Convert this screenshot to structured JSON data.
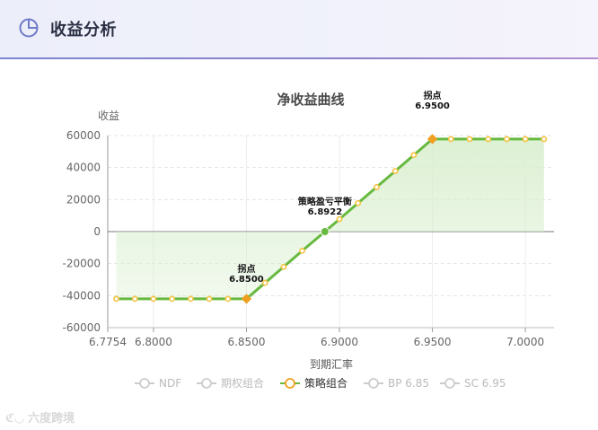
{
  "header": {
    "title": "收益分析",
    "icon": "pie-chart-icon"
  },
  "watermark": {
    "text": "六度跨境",
    "icon": "watermark-logo-icon"
  },
  "chart_data": {
    "type": "line",
    "title": "净收益曲线",
    "ylabel": "收益",
    "xlabel": "到期汇率",
    "xlim": [
      6.7754,
      7.0154
    ],
    "ylim": [
      -60000,
      60000
    ],
    "grid": true,
    "fill": true,
    "x_ticks": [
      {
        "value": 6.7754,
        "label": "6.7754"
      },
      {
        "value": 6.8,
        "label": "6.8000"
      },
      {
        "value": 6.85,
        "label": "6.8500"
      },
      {
        "value": 6.9,
        "label": "6.9000"
      },
      {
        "value": 6.95,
        "label": "6.9500"
      },
      {
        "value": 7.0,
        "label": "7.0000"
      }
    ],
    "y_ticks": [
      {
        "value": 60000,
        "label": "60000"
      },
      {
        "value": 40000,
        "label": "40000"
      },
      {
        "value": 20000,
        "label": "20000"
      },
      {
        "value": 0,
        "label": "0"
      },
      {
        "value": -20000,
        "label": "-20000"
      },
      {
        "value": -40000,
        "label": "-40000"
      },
      {
        "value": -60000,
        "label": "-60000"
      }
    ],
    "legend_position": "bottom",
    "legend": [
      {
        "name": "NDF",
        "active": false
      },
      {
        "name": "期权组合",
        "active": false
      },
      {
        "name": "策略组合",
        "active": true
      },
      {
        "name": "BP 6.85",
        "active": false
      },
      {
        "name": "SC 6.95",
        "active": false
      }
    ],
    "series": [
      {
        "name": "策略组合",
        "color": "#67b93f",
        "fill_color": "#d9efcf",
        "marker_color": "#f5c243",
        "points": [
          [
            6.78,
            -42000
          ],
          [
            6.79,
            -42000
          ],
          [
            6.8,
            -42000
          ],
          [
            6.81,
            -42000
          ],
          [
            6.82,
            -42000
          ],
          [
            6.83,
            -42000
          ],
          [
            6.84,
            -42000
          ],
          [
            6.85,
            -42000
          ],
          [
            6.86,
            -32000
          ],
          [
            6.87,
            -22000
          ],
          [
            6.88,
            -12000
          ],
          [
            6.8922,
            0
          ],
          [
            6.9,
            7800
          ],
          [
            6.91,
            17800
          ],
          [
            6.92,
            27800
          ],
          [
            6.93,
            37800
          ],
          [
            6.94,
            47800
          ],
          [
            6.95,
            57800
          ],
          [
            6.96,
            57800
          ],
          [
            6.97,
            57800
          ],
          [
            6.98,
            57800
          ],
          [
            6.99,
            57800
          ],
          [
            7.0,
            57800
          ],
          [
            7.01,
            57800
          ]
        ]
      }
    ],
    "annotations": [
      {
        "x": 6.85,
        "y": -42000,
        "label": "拐点",
        "value": "6.8500",
        "color": "#f0a020"
      },
      {
        "x": 6.8922,
        "y": 0,
        "label": "策略盈亏平衡",
        "value": "6.8922",
        "color": "#67b93f"
      },
      {
        "x": 6.95,
        "y": 57800,
        "label": "拐点",
        "value": "6.9500",
        "color": "#f0a020"
      }
    ]
  }
}
